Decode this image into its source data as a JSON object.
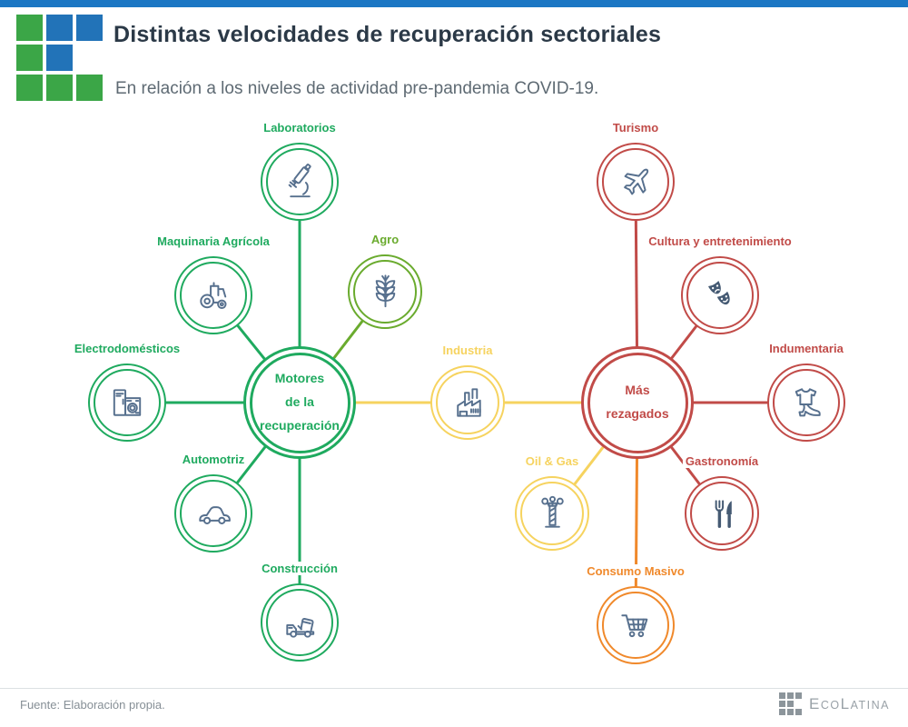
{
  "header": {
    "title": "Distintas velocidades de recuperación sectoriales",
    "subtitle": "En relación a los niveles de actividad pre-pandemia COVID-19.",
    "topbar_color": "#1B77C4"
  },
  "logo": {
    "pattern": [
      [
        "green",
        "blue",
        "blue"
      ],
      [
        "green",
        "blue",
        null
      ],
      [
        "green",
        "green",
        "green"
      ]
    ],
    "green": "#3BA647",
    "blue": "#2273B8"
  },
  "colors": {
    "green": "#1FAA5F",
    "agro": "#6AAB2E",
    "yellow": "#F6D35F",
    "orange": "#F0892B",
    "red": "#C14B48",
    "icon": "#57708E",
    "icon_fill": "#455A73"
  },
  "diagram": {
    "hubs": [
      {
        "id": "motores",
        "label_lines": [
          "Motores",
          "de la",
          "recuperación"
        ],
        "color": "green"
      },
      {
        "id": "rezagados",
        "label_lines": [
          "Más",
          "rezagados"
        ],
        "color": "red"
      }
    ],
    "satellites": [
      {
        "id": "laboratorios",
        "label": "Laboratorios",
        "color": "green",
        "icon": "microscope"
      },
      {
        "id": "maquinaria",
        "label": "Maquinaria Agrícola",
        "color": "green",
        "icon": "tractor"
      },
      {
        "id": "agro",
        "label": "Agro",
        "color": "agro",
        "icon": "wheat"
      },
      {
        "id": "electrodomesticos",
        "label": "Electrodomésticos",
        "color": "green",
        "icon": "appliances"
      },
      {
        "id": "automotriz",
        "label": "Automotriz",
        "color": "green",
        "icon": "car"
      },
      {
        "id": "construccion",
        "label": "Construcción",
        "color": "green",
        "icon": "mixer-truck"
      },
      {
        "id": "industria",
        "label": "Industria",
        "color": "yellow",
        "icon": "factory"
      },
      {
        "id": "turismo",
        "label": "Turismo",
        "color": "red",
        "icon": "airplane"
      },
      {
        "id": "cultura",
        "label": "Cultura y entretenimiento",
        "color": "red",
        "icon": "theater-masks"
      },
      {
        "id": "indumentaria",
        "label": "Indumentaria",
        "color": "red",
        "icon": "clothing"
      },
      {
        "id": "gastronomia",
        "label": "Gastronomía",
        "color": "red",
        "icon": "cutlery"
      },
      {
        "id": "oilgas",
        "label": "Oil & Gas",
        "color": "yellow",
        "icon": "oil-derrick"
      },
      {
        "id": "consumo",
        "label": "Consumo Masivo",
        "color": "orange",
        "icon": "shopping-cart"
      }
    ],
    "links": [
      {
        "from": "motores",
        "to": "laboratorios",
        "color": "green"
      },
      {
        "from": "motores",
        "to": "maquinaria",
        "color": "green"
      },
      {
        "from": "motores",
        "to": "agro",
        "color": "agro"
      },
      {
        "from": "motores",
        "to": "electrodomesticos",
        "color": "green"
      },
      {
        "from": "motores",
        "to": "automotriz",
        "color": "green"
      },
      {
        "from": "motores",
        "to": "construccion",
        "color": "green"
      },
      {
        "from": "motores",
        "to": "industria",
        "color": "yellow"
      },
      {
        "from": "industria",
        "to": "rezagados",
        "color": "yellow"
      },
      {
        "from": "rezagados",
        "to": "turismo",
        "color": "red"
      },
      {
        "from": "rezagados",
        "to": "cultura",
        "color": "red"
      },
      {
        "from": "rezagados",
        "to": "indumentaria",
        "color": "red"
      },
      {
        "from": "rezagados",
        "to": "gastronomia",
        "color": "red"
      },
      {
        "from": "rezagados",
        "to": "oilgas",
        "color": "yellow"
      },
      {
        "from": "rezagados",
        "to": "consumo",
        "color": "orange"
      }
    ]
  },
  "footer": {
    "source": "Fuente: Elaboración propia.",
    "brand": {
      "pattern": [
        [
          1,
          1,
          1
        ],
        [
          1,
          1,
          0
        ],
        [
          1,
          1,
          1
        ]
      ],
      "gray": "#8C959B",
      "e": "E",
      "co": "CO",
      "l": "L",
      "atina": "ATINA"
    }
  }
}
